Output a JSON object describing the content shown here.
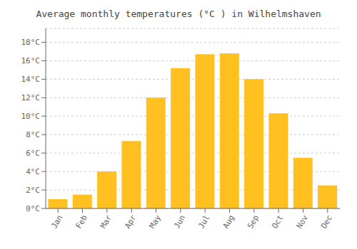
{
  "chart_data": {
    "type": "bar",
    "title": "Average monthly temperatures (°C ) in Wilhelmshaven",
    "categories": [
      "Jan",
      "Feb",
      "Mar",
      "Apr",
      "May",
      "Jun",
      "Jul",
      "Aug",
      "Sep",
      "Oct",
      "Nov",
      "Dec"
    ],
    "values": [
      1.0,
      1.5,
      4.0,
      7.3,
      12.0,
      15.2,
      16.7,
      16.8,
      14.0,
      10.3,
      5.5,
      2.5
    ],
    "color": "#FFC020",
    "ylim": [
      0,
      19.5
    ],
    "yticks": [
      {
        "value": 0,
        "label": "0°C"
      },
      {
        "value": 2,
        "label": "2°C"
      },
      {
        "value": 4,
        "label": "4°C"
      },
      {
        "value": 6,
        "label": "6°C"
      },
      {
        "value": 8,
        "label": "8°C"
      },
      {
        "value": 10,
        "label": "10°C"
      },
      {
        "value": 12,
        "label": "12°C"
      },
      {
        "value": 14,
        "label": "14°C"
      },
      {
        "value": 16,
        "label": "16°C"
      },
      {
        "value": 18,
        "label": "18°C"
      }
    ],
    "grid": true
  }
}
